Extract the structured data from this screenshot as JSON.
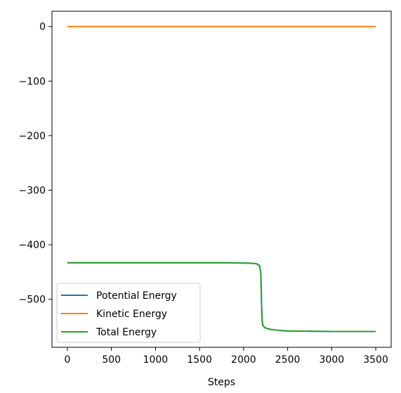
{
  "chart_data": {
    "type": "line",
    "title": "",
    "xlabel": "Steps",
    "ylabel": "",
    "xlim": [
      -175,
      3675
    ],
    "ylim": [
      -588,
      28
    ],
    "xticks": [
      0,
      500,
      1000,
      1500,
      2000,
      2500,
      3000,
      3500
    ],
    "yticks": [
      0,
      -100,
      -200,
      -300,
      -400,
      -500
    ],
    "ytick_labels": [
      "0",
      "−100",
      "−200",
      "−300",
      "−400",
      "−500"
    ],
    "grid": false,
    "legend_position": "lower-left",
    "series": [
      {
        "name": "Potential Energy",
        "color": "#1f77b4",
        "x": [
          0,
          500,
          1000,
          1500,
          1800,
          2000,
          2100,
          2150,
          2180,
          2195,
          2200,
          2205,
          2210,
          2215,
          2220,
          2240,
          2300,
          2400,
          2500,
          3000,
          3500
        ],
        "y": [
          -433,
          -433,
          -433,
          -433,
          -433,
          -433.5,
          -434,
          -435,
          -438,
          -450,
          -480,
          -515,
          -538,
          -545,
          -548,
          -552,
          -555,
          -557,
          -558,
          -559,
          -559
        ]
      },
      {
        "name": "Kinetic Energy",
        "color": "#ff7f0e",
        "x": [
          0,
          3500
        ],
        "y": [
          0,
          0
        ]
      },
      {
        "name": "Total Energy",
        "color": "#2ca02c",
        "x": [
          0,
          500,
          1000,
          1500,
          1800,
          2000,
          2100,
          2150,
          2180,
          2195,
          2200,
          2205,
          2210,
          2215,
          2220,
          2240,
          2300,
          2400,
          2500,
          3000,
          3500
        ],
        "y": [
          -433,
          -433,
          -433,
          -433,
          -433,
          -433.5,
          -434,
          -435,
          -438,
          -450,
          -480,
          -515,
          -538,
          -545,
          -548,
          -552,
          -555,
          -557,
          -558,
          -559,
          -559
        ]
      }
    ]
  }
}
